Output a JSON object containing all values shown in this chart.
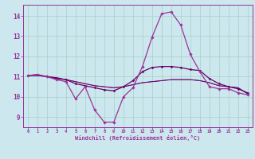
{
  "bg_color": "#cce8ee",
  "grid_color": "#aad4cc",
  "line_color1": "#993399",
  "line_color2": "#660066",
  "xlabel": "Windchill (Refroidissement éolien,°C)",
  "x_hours": [
    0,
    1,
    2,
    3,
    4,
    5,
    6,
    7,
    8,
    9,
    10,
    11,
    12,
    13,
    14,
    15,
    16,
    17,
    18,
    19,
    20,
    21,
    22,
    23
  ],
  "series1": [
    11.05,
    11.1,
    11.0,
    10.85,
    10.75,
    9.9,
    10.5,
    9.35,
    8.75,
    8.75,
    10.0,
    10.45,
    11.5,
    12.95,
    14.1,
    14.2,
    13.55,
    12.1,
    11.25,
    10.5,
    10.4,
    10.4,
    10.2,
    10.1
  ],
  "series2": [
    11.05,
    11.1,
    11.0,
    10.9,
    10.85,
    10.65,
    10.55,
    10.45,
    10.35,
    10.3,
    10.5,
    10.8,
    11.25,
    11.45,
    11.5,
    11.5,
    11.45,
    11.35,
    11.3,
    10.9,
    10.65,
    10.5,
    10.4,
    10.2
  ],
  "series3": [
    11.05,
    11.05,
    11.0,
    10.95,
    10.85,
    10.75,
    10.65,
    10.55,
    10.5,
    10.45,
    10.5,
    10.6,
    10.7,
    10.75,
    10.8,
    10.85,
    10.85,
    10.85,
    10.8,
    10.7,
    10.55,
    10.5,
    10.45,
    10.15
  ],
  "series4": [
    11.05,
    11.05,
    11.0,
    10.95,
    10.85,
    10.75,
    10.65,
    10.55,
    10.5,
    10.45,
    10.5,
    10.6,
    10.7,
    10.75,
    10.8,
    10.85,
    10.85,
    10.85,
    10.8,
    10.7,
    10.55,
    10.5,
    10.45,
    10.15
  ],
  "ylim": [
    8.5,
    14.55
  ],
  "yticks": [
    9,
    10,
    11,
    12,
    13,
    14
  ],
  "xlim": [
    -0.5,
    23.5
  ],
  "xticks": [
    0,
    1,
    2,
    3,
    4,
    5,
    6,
    7,
    8,
    9,
    10,
    11,
    12,
    13,
    14,
    15,
    16,
    17,
    18,
    19,
    20,
    21,
    22,
    23
  ]
}
